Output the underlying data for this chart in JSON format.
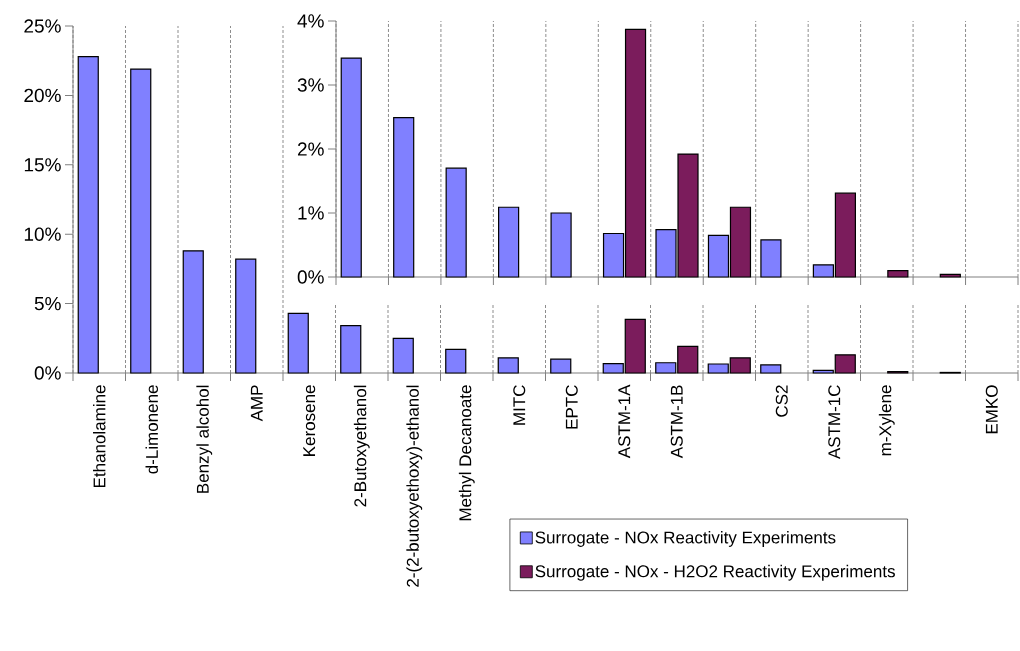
{
  "chart_data": [
    {
      "type": "bar",
      "categories": [
        "Ethanolamine",
        "d-Limonene",
        "Benzyl alcohol",
        "AMP",
        "Kerosene",
        "2-Butoxyethanol",
        "2-(2-butoxyethoxy)-ethanol",
        "Methyl Decanoate",
        "MITC",
        "EPTC",
        "ASTM-1A",
        "ASTM-1B",
        null,
        "CS2",
        "ASTM-1C",
        "m-Xylene",
        null,
        "EMKO"
      ],
      "series": [
        {
          "name": "Surrogate - NOx Reactivity Experiments",
          "color": "#8080ff",
          "values": [
            22.8,
            21.9,
            8.8,
            8.2,
            4.3,
            3.42,
            2.49,
            1.7,
            1.09,
            1.0,
            0.68,
            0.74,
            0.65,
            0.58,
            0.19,
            null,
            null,
            null
          ]
        },
        {
          "name": "Surrogate - NOx - H2O2 Reactivity Experiments",
          "color": "#7b1c5c",
          "values": [
            null,
            null,
            null,
            null,
            null,
            null,
            null,
            null,
            null,
            null,
            3.87,
            1.92,
            1.09,
            null,
            1.31,
            0.1,
            0.04,
            null
          ]
        }
      ],
      "ylim": [
        0,
        25
      ],
      "yticks": [
        {
          "value": 0,
          "label": "0%"
        },
        {
          "value": 5,
          "label": "5%"
        },
        {
          "value": 10,
          "label": "10%"
        },
        {
          "value": 15,
          "label": "15%"
        },
        {
          "value": 20,
          "label": "20%"
        },
        {
          "value": 25,
          "label": "25%"
        }
      ],
      "grid": "x",
      "legend": "bottom right"
    },
    {
      "type": "bar",
      "categories": [
        null,
        null,
        null,
        null,
        null,
        null,
        null,
        null,
        null,
        null,
        null,
        null,
        null
      ],
      "series": [
        {
          "color": "#8080ff",
          "values": [
            3.42,
            2.49,
            1.7,
            1.09,
            1.0,
            0.68,
            0.74,
            0.65,
            0.58,
            0.19,
            null,
            null,
            null
          ]
        },
        {
          "color": "#7b1c5c",
          "values": [
            null,
            null,
            null,
            null,
            null,
            3.87,
            1.92,
            1.09,
            null,
            1.31,
            0.1,
            0.04,
            null
          ]
        }
      ],
      "ylim": [
        0,
        4
      ],
      "yticks": [
        {
          "value": 0,
          "label": "0%"
        },
        {
          "value": 1,
          "label": "1%"
        },
        {
          "value": 2,
          "label": "2%"
        },
        {
          "value": 3,
          "label": "3%"
        },
        {
          "value": 4,
          "label": "4%"
        }
      ],
      "grid": "x",
      "tick_labels": "y"
    }
  ]
}
